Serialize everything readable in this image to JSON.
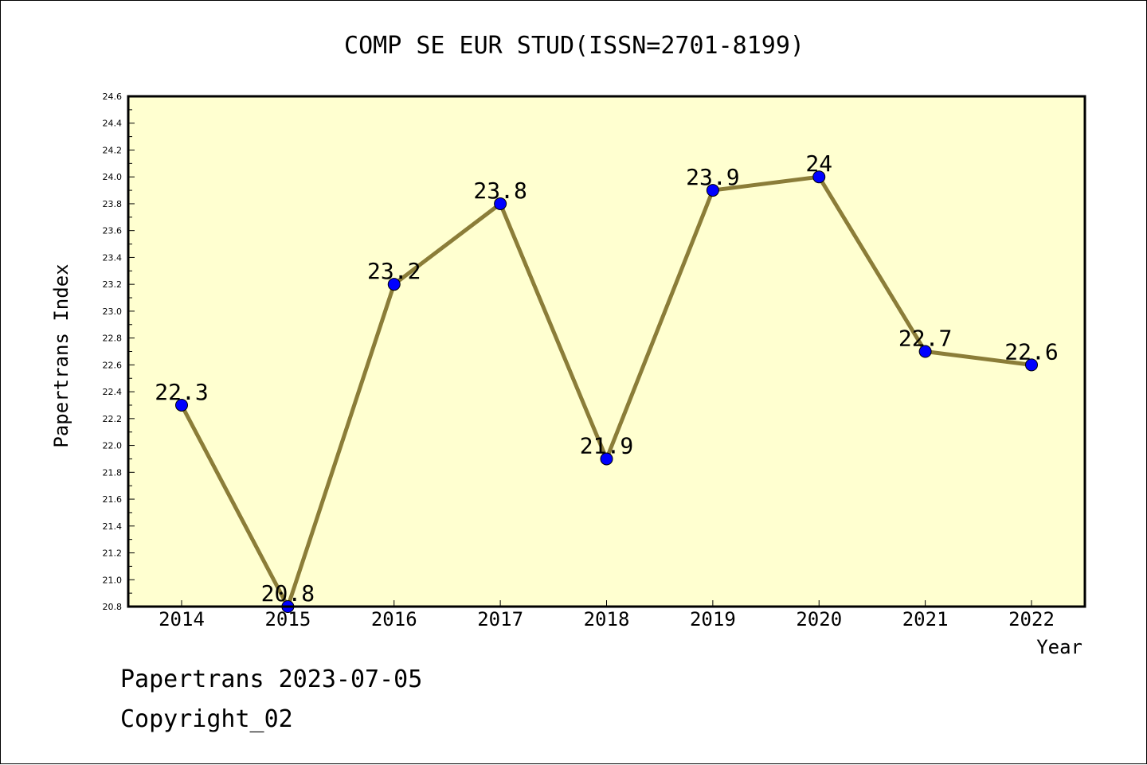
{
  "chart_data": {
    "type": "line",
    "title": "COMP SE EUR STUD(ISSN=2701-8199)",
    "xlabel": "Year",
    "ylabel": "Papertrans Index",
    "x": [
      "2014",
      "2015",
      "2016",
      "2017",
      "2018",
      "2019",
      "2020",
      "2021",
      "2022"
    ],
    "series": [
      {
        "values": [
          22.3,
          20.8,
          23.2,
          23.8,
          21.9,
          23.9,
          24.0,
          22.7,
          22.6
        ],
        "labels": [
          "22.3",
          "20.8",
          "23.2",
          "23.8",
          "21.9",
          "23.9",
          "24",
          "22.7",
          "22.6"
        ]
      }
    ],
    "ylim": [
      20.8,
      24.6
    ],
    "y_ticks": [
      "20.8",
      "21.0",
      "21.2",
      "21.4",
      "21.6",
      "21.8",
      "22.0",
      "22.2",
      "22.4",
      "22.6",
      "22.8",
      "23.0",
      "23.2",
      "23.4",
      "23.6",
      "23.8",
      "24.0",
      "24.2",
      "24.4",
      "24.6"
    ],
    "grid": false,
    "colors": {
      "plot_background": "#ffffd0",
      "line": "#8b7d38",
      "marker": "#0000ff"
    }
  },
  "footer": {
    "line1": "Papertrans 2023-07-05",
    "line2": "Copyright_02"
  }
}
